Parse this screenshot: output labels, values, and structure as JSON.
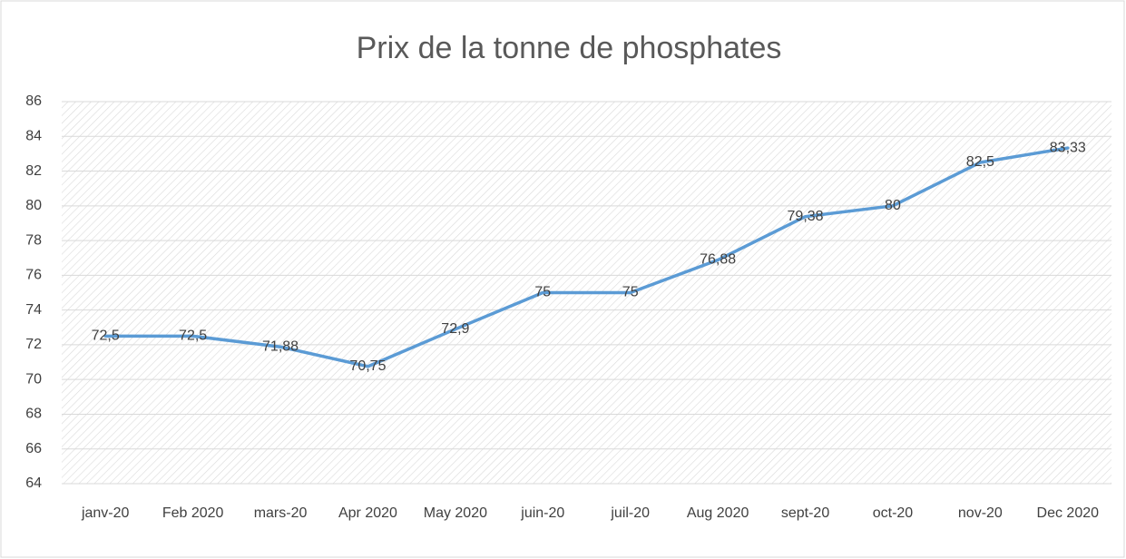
{
  "chart_data": {
    "type": "line",
    "title": "Prix de la tonne de phosphates",
    "categories": [
      "janv-20",
      "Feb 2020",
      "mars-20",
      "Apr 2020",
      "May 2020",
      "juin-20",
      "juil-20",
      "Aug 2020",
      "sept-20",
      "oct-20",
      "nov-20",
      "Dec 2020"
    ],
    "series": [
      {
        "color": "#5b9bd5",
        "values": [
          72.5,
          72.5,
          71.88,
          70.75,
          72.9,
          75,
          75,
          76.88,
          79.38,
          80,
          82.5,
          83.33
        ],
        "value_labels": [
          "72,5",
          "72,5",
          "71,88",
          "70,75",
          "72,9",
          "75",
          "75",
          "76,88",
          "79,38",
          "80",
          "82,5",
          "83,33"
        ]
      }
    ],
    "ylim": [
      64,
      86
    ],
    "yticks": [
      64,
      66,
      68,
      70,
      72,
      74,
      76,
      78,
      80,
      82,
      84,
      86
    ],
    "grid": true
  }
}
